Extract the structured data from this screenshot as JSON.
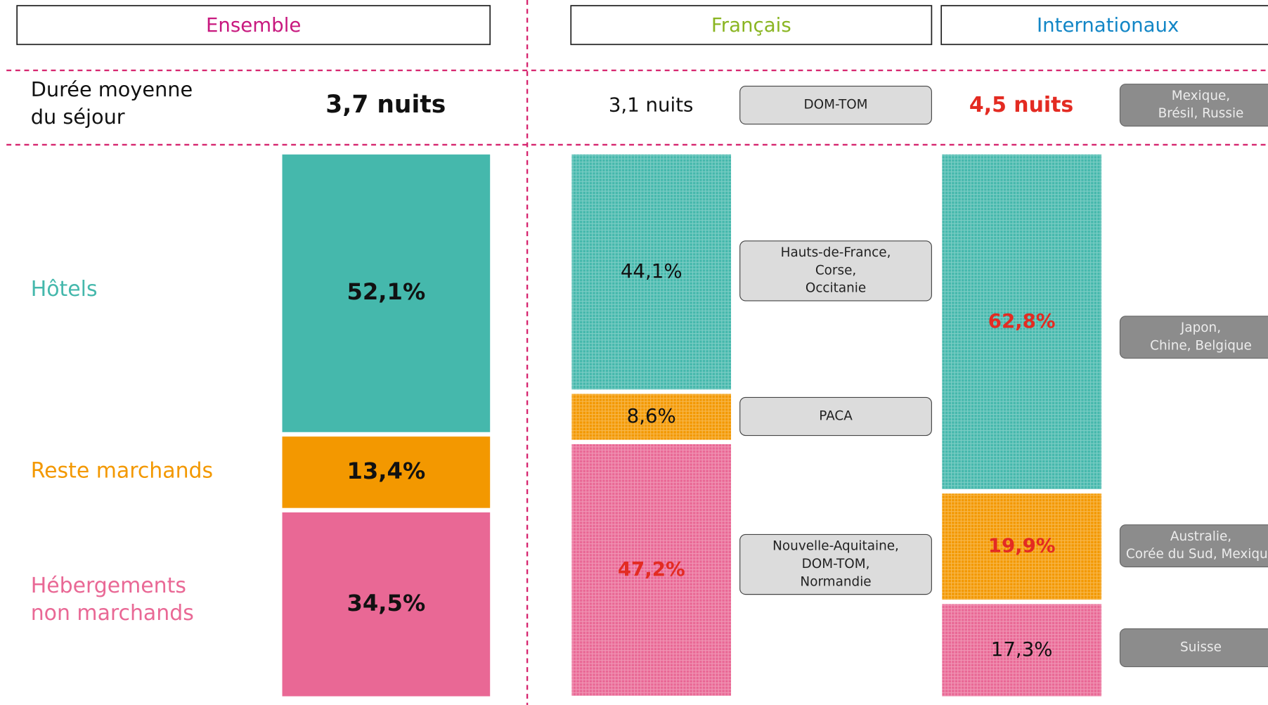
{
  "headers": [
    "Ensemble",
    "Français",
    "Internationaux"
  ],
  "header_colors": [
    "#c8197f",
    "#8ab522",
    "#1286c6"
  ],
  "duration_label": [
    "Durée moyenne",
    "du séjour"
  ],
  "categories": [
    [
      "Hôtels"
    ],
    [
      "Reste marchands"
    ],
    [
      "Hébergements",
      "non marchands"
    ]
  ],
  "category_colors": [
    "#45b8ac",
    "#f39800",
    "#e96895"
  ],
  "highlight_color": "#e32b22",
  "columns": [
    {
      "duration_label": "3,7 nuits",
      "duration_highlight": false,
      "values": [
        52.1,
        13.4,
        34.5
      ],
      "value_labels": [
        "52,1%",
        "13,4%",
        "34,5%"
      ],
      "highlight": [
        false,
        false,
        false
      ],
      "textured": false
    },
    {
      "duration_label": "3,1 nuits",
      "duration_highlight": false,
      "duration_regions": [
        "DOM-TOM"
      ],
      "values": [
        44.1,
        8.6,
        47.2
      ],
      "value_labels": [
        "44,1%",
        "8,6%",
        "47,2%"
      ],
      "highlight": [
        false,
        false,
        true
      ],
      "textured": true,
      "regions": [
        [
          "Hauts-de-France,",
          "Corse,",
          "Occitanie"
        ],
        [
          "PACA"
        ],
        [
          "Nouvelle-Aquitaine,",
          "DOM-TOM,",
          "Normandie"
        ]
      ],
      "region_style": "light"
    },
    {
      "duration_label": "4,5 nuits",
      "duration_highlight": true,
      "duration_regions": [
        "Mexique,",
        "Brésil, Russie"
      ],
      "values": [
        62.8,
        19.9,
        17.3
      ],
      "value_labels": [
        "62,8%",
        "19,9%",
        "17,3%"
      ],
      "highlight": [
        true,
        true,
        false
      ],
      "textured": true,
      "regions": [
        [
          "Japon,",
          "Chine, Belgique"
        ],
        [
          "Australie,",
          "Corée du Sud, Mexique"
        ],
        [
          "Suisse"
        ]
      ],
      "region_style": "dark"
    }
  ]
}
